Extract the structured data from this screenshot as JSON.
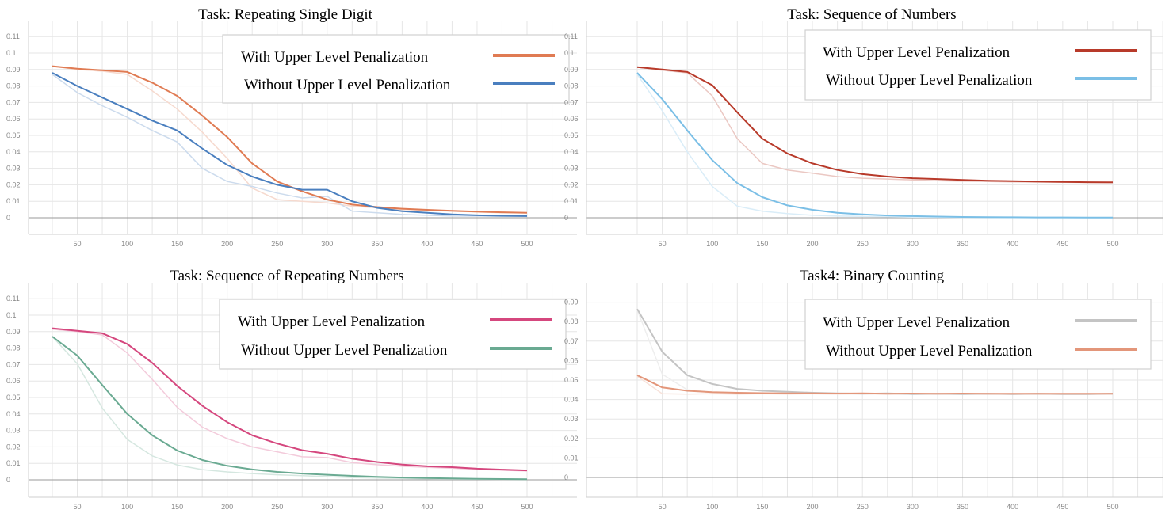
{
  "chart_data": [
    {
      "type": "line",
      "title": "Task: Repeating Single Digit",
      "x": [
        25,
        50,
        75,
        100,
        125,
        150,
        175,
        200,
        225,
        250,
        275,
        300,
        325,
        350,
        375,
        400,
        425,
        450,
        475,
        500
      ],
      "x_ticks": [
        "50",
        "100",
        "150",
        "200",
        "250",
        "300",
        "350",
        "400",
        "450",
        "500"
      ],
      "y_ticks": [
        "0",
        "0.01",
        "0.02",
        "0.03",
        "0.04",
        "0.05",
        "0.06",
        "0.07",
        "0.08",
        "0.09",
        "0.1",
        "0.11"
      ],
      "ylim": [
        -0.01,
        0.12
      ],
      "grid": true,
      "legend_position": "top-right",
      "series": [
        {
          "name": "With Upper Level Penalization",
          "color": "#e07b53",
          "values": [
            0.092,
            0.0905,
            0.0895,
            0.0885,
            0.082,
            0.074,
            0.062,
            0.049,
            0.033,
            0.022,
            0.016,
            0.011,
            0.008,
            0.0065,
            0.0055,
            0.0048,
            0.0042,
            0.0037,
            0.0033,
            0.003
          ],
          "raw": [
            0.092,
            0.09,
            0.089,
            0.087,
            0.077,
            0.066,
            0.052,
            0.036,
            0.018,
            0.011,
            0.01,
            0.009,
            0.007,
            0.006,
            0.005,
            0.0045,
            0.004,
            0.0035,
            0.003,
            0.003
          ]
        },
        {
          "name": "Without Upper Level Penalization",
          "color": "#4a7fbf",
          "values": [
            0.088,
            0.08,
            0.073,
            0.066,
            0.059,
            0.053,
            0.042,
            0.032,
            0.025,
            0.02,
            0.017,
            0.017,
            0.01,
            0.006,
            0.004,
            0.003,
            0.002,
            0.0015,
            0.0012,
            0.001
          ],
          "raw": [
            0.087,
            0.076,
            0.068,
            0.061,
            0.053,
            0.046,
            0.03,
            0.022,
            0.019,
            0.015,
            0.012,
            0.013,
            0.004,
            0.003,
            0.002,
            0.0015,
            0.001,
            0.001,
            0.0008,
            0.0008
          ]
        }
      ]
    },
    {
      "type": "line",
      "title": "Task: Sequence of Numbers",
      "x": [
        25,
        50,
        75,
        100,
        125,
        150,
        175,
        200,
        225,
        250,
        275,
        300,
        325,
        350,
        375,
        400,
        425,
        450,
        475,
        500
      ],
      "x_ticks": [
        "50",
        "100",
        "150",
        "200",
        "250",
        "300",
        "350",
        "400",
        "450",
        "500"
      ],
      "y_ticks": [
        "0",
        "0.01",
        "0.02",
        "0.03",
        "0.04",
        "0.05",
        "0.06",
        "0.07",
        "0.08",
        "0.09",
        "0.1",
        "0.11"
      ],
      "ylim": [
        -0.01,
        0.12
      ],
      "grid": true,
      "legend_position": "top-right",
      "series": [
        {
          "name": "With Upper Level Penalization",
          "color": "#b83a2a",
          "values": [
            0.0915,
            0.09,
            0.0885,
            0.0805,
            0.064,
            0.048,
            0.039,
            0.033,
            0.029,
            0.0265,
            0.025,
            0.024,
            0.0235,
            0.023,
            0.0225,
            0.0222,
            0.022,
            0.0218,
            0.0216,
            0.0215
          ],
          "raw": [
            0.0915,
            0.0895,
            0.088,
            0.074,
            0.048,
            0.033,
            0.029,
            0.027,
            0.025,
            0.024,
            0.0235,
            0.023,
            0.0225,
            0.0222,
            0.022,
            0.0218,
            0.0216,
            0.0215,
            0.0214,
            0.0213
          ]
        },
        {
          "name": "Without Upper Level Penalization",
          "color": "#7bbfe6",
          "values": [
            0.088,
            0.072,
            0.053,
            0.035,
            0.021,
            0.0125,
            0.0075,
            0.0048,
            0.003,
            0.002,
            0.0014,
            0.001,
            0.0007,
            0.0005,
            0.0004,
            0.0003,
            0.0002,
            0.0002,
            0.0001,
            0.0001
          ],
          "raw": [
            0.087,
            0.065,
            0.04,
            0.019,
            0.007,
            0.004,
            0.0025,
            0.0015,
            0.001,
            0.0008,
            0.0006,
            0.0004,
            0.0003,
            0.0002,
            0.0002,
            0.0001,
            0.0001,
            0.0001,
            0.0001,
            0.0001
          ]
        }
      ]
    },
    {
      "type": "line",
      "title": "Task: Sequence of Repeating Numbers",
      "x": [
        25,
        50,
        75,
        100,
        125,
        150,
        175,
        200,
        225,
        250,
        275,
        300,
        325,
        350,
        375,
        400,
        425,
        450,
        475,
        500
      ],
      "x_ticks": [
        "50",
        "100",
        "150",
        "200",
        "250",
        "300",
        "350",
        "400",
        "450",
        "500"
      ],
      "y_ticks": [
        "0",
        "0.01",
        "0.02",
        "0.03",
        "0.04",
        "0.05",
        "0.06",
        "0.07",
        "0.08",
        "0.09",
        "0.1",
        "0.11"
      ],
      "ylim": [
        -0.01,
        0.12
      ],
      "grid": true,
      "legend_position": "top-right",
      "series": [
        {
          "name": "With Upper Level Penalization",
          "color": "#d5477e",
          "values": [
            0.092,
            0.0905,
            0.089,
            0.0825,
            0.071,
            0.057,
            0.045,
            0.035,
            0.027,
            0.022,
            0.018,
            0.0158,
            0.0128,
            0.0108,
            0.0093,
            0.0082,
            0.0077,
            0.0068,
            0.0062,
            0.0057
          ],
          "raw": [
            0.0915,
            0.09,
            0.088,
            0.077,
            0.061,
            0.044,
            0.032,
            0.025,
            0.02,
            0.017,
            0.014,
            0.0135,
            0.0105,
            0.0092,
            0.0082,
            0.0076,
            0.0071,
            0.0063,
            0.0058,
            0.0054
          ]
        },
        {
          "name": "Without Upper Level Penalization",
          "color": "#6aaa92",
          "values": [
            0.087,
            0.0755,
            0.0575,
            0.04,
            0.027,
            0.0178,
            0.012,
            0.0085,
            0.0063,
            0.0048,
            0.0038,
            0.0031,
            0.0024,
            0.0018,
            0.0014,
            0.0011,
            0.0008,
            0.0006,
            0.0005,
            0.0004
          ],
          "raw": [
            0.087,
            0.0705,
            0.0435,
            0.0245,
            0.0145,
            0.009,
            0.0062,
            0.0048,
            0.0038,
            0.0031,
            0.0025,
            0.0019,
            0.0014,
            0.0011,
            0.0008,
            0.0006,
            0.0005,
            0.0004,
            0.0003,
            0.0003
          ]
        }
      ]
    },
    {
      "type": "line",
      "title": "Task4: Binary Counting",
      "x": [
        25,
        50,
        75,
        100,
        125,
        150,
        175,
        200,
        225,
        250,
        275,
        300,
        325,
        350,
        375,
        400,
        425,
        450,
        475,
        500
      ],
      "x_ticks": [
        "50",
        "100",
        "150",
        "200",
        "250",
        "300",
        "350",
        "400",
        "450",
        "500"
      ],
      "y_ticks": [
        "0",
        "0.01",
        "0.02",
        "0.03",
        "0.04",
        "0.05",
        "0.06",
        "0.07",
        "0.08",
        "0.09"
      ],
      "ylim": [
        -0.01,
        0.095
      ],
      "grid": true,
      "legend_position": "top-right",
      "series": [
        {
          "name": "With Upper Level Penalization",
          "color": "#c4c4c4",
          "values": [
            0.0865,
            0.0645,
            0.0525,
            0.048,
            0.0455,
            0.0445,
            0.044,
            0.0435,
            0.0432,
            0.043,
            0.0432,
            0.0428,
            0.043,
            0.0428,
            0.043,
            0.0428,
            0.043,
            0.0428,
            0.0428,
            0.043
          ],
          "raw": [
            0.086,
            0.053,
            0.045,
            0.0438,
            0.0435,
            0.0432,
            0.043,
            0.043,
            0.0428,
            0.043,
            0.0428,
            0.043,
            0.0428,
            0.043,
            0.0428,
            0.043,
            0.0428,
            0.043,
            0.0428,
            0.043
          ]
        },
        {
          "name": "Without Upper Level Penalization",
          "color": "#e3967a",
          "values": [
            0.0525,
            0.0462,
            0.0445,
            0.0438,
            0.0435,
            0.0433,
            0.0432,
            0.0432,
            0.0431,
            0.0432,
            0.043,
            0.0431,
            0.043,
            0.0431,
            0.043,
            0.043,
            0.043,
            0.043,
            0.043,
            0.043
          ],
          "raw": [
            0.052,
            0.043,
            0.0428,
            0.043,
            0.0428,
            0.043,
            0.0428,
            0.043,
            0.0428,
            0.043,
            0.0428,
            0.043,
            0.0428,
            0.043,
            0.0428,
            0.043,
            0.0428,
            0.043,
            0.0428,
            0.043
          ]
        }
      ]
    }
  ]
}
